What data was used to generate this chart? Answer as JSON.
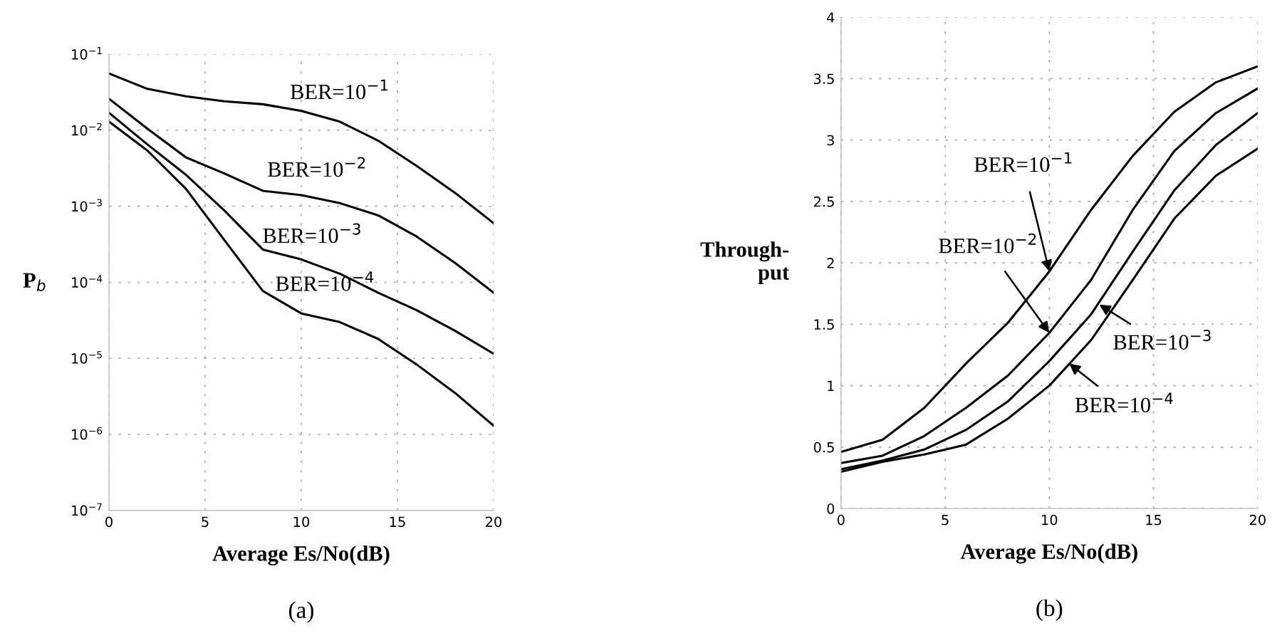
{
  "chart_data": [
    {
      "type": "line",
      "xlabel": "Average Es/No(dB)",
      "ylabel": "P$_{b}$",
      "log": "y",
      "x": [
        0,
        2,
        4,
        6,
        8,
        10,
        12,
        14,
        16,
        18,
        20
      ],
      "series": [
        {
          "color": "#000000",
          "values": [
            0.056,
            0.035,
            0.028,
            0.024,
            0.022,
            0.018,
            0.013,
            0.0073,
            0.0034,
            0.0015,
            0.0006
          ]
        },
        {
          "color": "#000000",
          "values": [
            0.026,
            0.0105,
            0.0044,
            0.0027,
            0.0016,
            0.0014,
            0.0011,
            0.00076,
            0.0004,
            0.00018,
            7.3e-05
          ]
        },
        {
          "color": "#000000",
          "values": [
            0.017,
            0.0065,
            0.0026,
            0.00088,
            0.00027,
            0.0002,
            0.00013,
            7.3e-05,
            4.3e-05,
            2.3e-05,
            1.15e-05
          ]
        },
        {
          "color": "#000000",
          "values": [
            0.013,
            0.0054,
            0.0017,
            0.00036,
            7.7e-05,
            3.9e-05,
            3e-05,
            1.8e-05,
            8.3e-06,
            3.5e-06,
            1.3e-06
          ]
        }
      ],
      "xlim": [
        0,
        20
      ],
      "xticks": [
        0,
        5,
        10,
        15,
        20
      ],
      "ylim": [
        1e-07,
        0.1
      ],
      "yticks": [
        {
          "value": 1e-07,
          "label": "10$^{−7}$"
        },
        {
          "value": 1e-06,
          "label": "10$^{−6}$"
        },
        {
          "value": 1e-05,
          "label": "10$^{−5}$"
        },
        {
          "value": 0.0001,
          "label": "10$^{−4}$"
        },
        {
          "value": 0.001,
          "label": "10$^{−3}$"
        },
        {
          "value": 0.01,
          "label": "10$^{−2}$"
        },
        {
          "value": 0.1,
          "label": "10$^{−1}$"
        }
      ],
      "grid": true,
      "line_style": "solid",
      "marker": "none",
      "annotations": [
        {
          "text": "BER=10$^{−1}$",
          "x": 12,
          "y": 0.013
        },
        {
          "text": "BER=10$^{−2}$",
          "x": 10,
          "y": 0.0014
        },
        {
          "text": "BER=10$^{−3}$",
          "x": 8,
          "y": 0.00027
        },
        {
          "text": "BER=10$^{−4}$",
          "x": 10,
          "y": 3.9e-05
        },
        "(a)"
      ]
    },
    {
      "type": "line",
      "xlabel": "Average Es/No(dB)",
      "ylabel": "Through-\nput",
      "x": [
        0,
        2,
        4,
        6,
        8,
        10,
        12,
        14,
        16,
        18,
        20
      ],
      "series": [
        {
          "color": "#000000",
          "values": [
            0.46,
            0.56,
            0.82,
            1.18,
            1.51,
            1.93,
            2.43,
            2.87,
            3.23,
            3.47,
            3.6
          ]
        },
        {
          "color": "#000000",
          "values": [
            0.37,
            0.43,
            0.59,
            0.82,
            1.08,
            1.43,
            1.86,
            2.43,
            2.91,
            3.22,
            3.42
          ]
        },
        {
          "color": "#000000",
          "values": [
            0.32,
            0.39,
            0.48,
            0.64,
            0.87,
            1.2,
            1.58,
            2.09,
            2.59,
            2.96,
            3.22
          ]
        },
        {
          "color": "#000000",
          "values": [
            0.3,
            0.38,
            0.44,
            0.52,
            0.73,
            1.0,
            1.37,
            1.86,
            2.36,
            2.71,
            2.93
          ]
        }
      ],
      "xlim": [
        0,
        20
      ],
      "xticks": [
        0,
        5,
        10,
        15,
        20
      ],
      "ylim": [
        0,
        4
      ],
      "yticks": [
        0,
        0.5,
        1,
        1.5,
        2,
        2.5,
        3,
        3.5,
        4
      ],
      "grid": true,
      "line_style": "solid",
      "marker": "none",
      "annotations": [
        {
          "text": "BER=10$^{−1}$",
          "x": 10,
          "y": 1.93
        },
        {
          "text": "BER=10$^{−2}$",
          "x": 10,
          "y": 1.43
        },
        {
          "text": "BER=10$^{−3}$",
          "x": 12.4,
          "y": 1.66
        },
        {
          "text": "BER=10$^{−4}$",
          "x": 10.95,
          "y": 1.18
        },
        "(b)"
      ]
    }
  ]
}
